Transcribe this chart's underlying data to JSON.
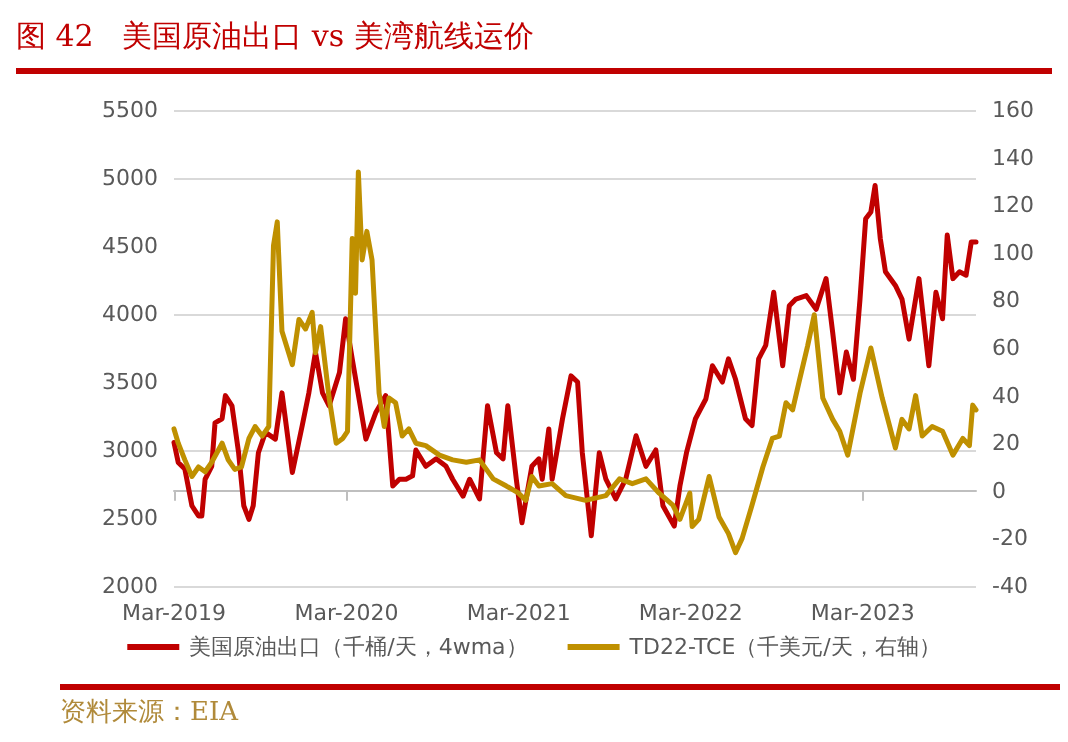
{
  "chart_data": {
    "type": "line",
    "title": "图 42   美国原油出口 vs 美湾航线运价",
    "annotations": [
      "资料来源：EIA"
    ],
    "xlim": [
      "2019-03-01",
      "2023-10-27"
    ],
    "xticks": [
      {
        "value": "2019-03-01",
        "label": "Mar-2019"
      },
      {
        "value": "2020-03-01",
        "label": "Mar-2020"
      },
      {
        "value": "2021-03-01",
        "label": "Mar-2021"
      },
      {
        "value": "2022-03-01",
        "label": "Mar-2022"
      },
      {
        "value": "2023-03-01",
        "label": "Mar-2023"
      }
    ],
    "ylim": [
      2000,
      5500
    ],
    "yticks": [
      2000,
      2500,
      3000,
      3500,
      4000,
      4500,
      5000,
      5500
    ],
    "y2lim": [
      -40,
      160
    ],
    "y2ticks": [
      -40,
      -20,
      0,
      20,
      40,
      60,
      80,
      100,
      120,
      140,
      160
    ],
    "grid": "y",
    "legend": "bottom",
    "marker": "none",
    "line_style": "solid",
    "series": [
      {
        "name": "美国原油出口（千桶/天，4wma）",
        "color": "#c00000",
        "x": [
          "2019-03-01",
          "2019-03-10",
          "2019-03-24",
          "2019-04-08",
          "2019-04-22",
          "2019-04-29",
          "2019-05-06",
          "2019-05-20",
          "2019-05-27",
          "2019-06-11",
          "2019-06-18",
          "2019-07-02",
          "2019-07-16",
          "2019-07-27",
          "2019-08-07",
          "2019-08-16",
          "2019-08-27",
          "2019-09-11",
          "2019-10-02",
          "2019-10-16",
          "2019-11-07",
          "2019-11-28",
          "2019-12-12",
          "2019-12-26",
          "2020-01-10",
          "2020-01-24",
          "2020-02-15",
          "2020-02-28",
          "2020-03-13",
          "2020-04-11",
          "2020-05-02",
          "2020-05-23",
          "2020-06-07",
          "2020-06-21",
          "2020-07-05",
          "2020-07-19",
          "2020-07-26",
          "2020-08-16",
          "2020-09-07",
          "2020-09-28",
          "2020-10-12",
          "2020-11-03",
          "2020-11-17",
          "2020-12-08",
          "2020-12-25",
          "2021-01-13",
          "2021-01-27",
          "2021-02-06",
          "2021-02-24",
          "2021-03-08",
          "2021-03-29",
          "2021-04-13",
          "2021-04-20",
          "2021-05-04",
          "2021-05-11",
          "2021-06-02",
          "2021-06-20",
          "2021-07-04",
          "2021-07-14",
          "2021-08-02",
          "2021-08-19",
          "2021-09-02",
          "2021-09-23",
          "2021-10-14",
          "2021-11-05",
          "2021-11-26",
          "2021-12-17",
          "2022-01-01",
          "2022-01-25",
          "2022-02-06",
          "2022-02-20",
          "2022-03-11",
          "2022-04-02",
          "2022-04-16",
          "2022-05-07",
          "2022-05-20",
          "2022-06-04",
          "2022-06-25",
          "2022-07-09",
          "2022-07-23",
          "2022-08-07",
          "2022-08-24",
          "2022-09-12",
          "2022-09-26",
          "2022-10-10",
          "2022-11-01",
          "2022-11-22",
          "2022-12-13",
          "2022-12-27",
          "2023-01-11",
          "2023-01-25",
          "2023-02-09",
          "2023-02-23",
          "2023-03-07",
          "2023-03-18",
          "2023-03-27",
          "2023-04-07",
          "2023-04-18",
          "2023-05-09",
          "2023-05-23",
          "2023-06-07",
          "2023-06-28",
          "2023-07-19",
          "2023-08-03",
          "2023-08-17",
          "2023-08-27",
          "2023-09-08",
          "2023-09-22",
          "2023-10-06",
          "2023-10-17",
          "2023-10-27"
        ],
        "values": [
          3055,
          2908,
          2860,
          2590,
          2515,
          2515,
          2785,
          2880,
          3200,
          3230,
          3400,
          3325,
          2980,
          2590,
          2490,
          2590,
          2980,
          3130,
          3080,
          3420,
          2835,
          3180,
          3420,
          3720,
          3420,
          3325,
          3570,
          3965,
          3670,
          3080,
          3275,
          3400,
          2735,
          2785,
          2785,
          2810,
          3000,
          2880,
          2935,
          2880,
          2785,
          2660,
          2785,
          2640,
          3325,
          2980,
          2935,
          3325,
          2785,
          2465,
          2880,
          2935,
          2785,
          3155,
          2785,
          3230,
          3545,
          3500,
          2980,
          2370,
          2980,
          2785,
          2640,
          2785,
          3105,
          2880,
          3000,
          2590,
          2440,
          2735,
          2980,
          3230,
          3375,
          3620,
          3500,
          3670,
          3520,
          3230,
          3180,
          3670,
          3770,
          4160,
          3620,
          4060,
          4110,
          4135,
          4035,
          4260,
          3865,
          3420,
          3720,
          3520,
          4110,
          4700,
          4750,
          4945,
          4555,
          4310,
          4210,
          4110,
          3815,
          4260,
          3620,
          4160,
          3965,
          4580,
          4260,
          4310,
          4285,
          4530,
          4530
        ]
      },
      {
        "name": "TD22-TCE（千美元/天，右轴）",
        "color": "#bf9000",
        "axis": "y2",
        "x": [
          "2019-03-01",
          "2019-03-10",
          "2019-03-24",
          "2019-04-08",
          "2019-04-22",
          "2019-05-06",
          "2019-05-20",
          "2019-06-11",
          "2019-06-24",
          "2019-07-08",
          "2019-07-22",
          "2019-08-07",
          "2019-08-20",
          "2019-09-04",
          "2019-09-18",
          "2019-09-28",
          "2019-10-06",
          "2019-10-16",
          "2019-11-07",
          "2019-11-21",
          "2019-12-05",
          "2019-12-19",
          "2019-12-26",
          "2020-01-06",
          "2020-01-24",
          "2020-02-08",
          "2020-02-22",
          "2020-03-03",
          "2020-03-13",
          "2020-03-20",
          "2020-03-26",
          "2020-04-03",
          "2020-04-13",
          "2020-04-24",
          "2020-05-09",
          "2020-05-20",
          "2020-05-30",
          "2020-06-13",
          "2020-06-27",
          "2020-07-11",
          "2020-07-26",
          "2020-08-16",
          "2020-09-14",
          "2020-10-12",
          "2020-11-10",
          "2020-12-08",
          "2021-01-06",
          "2021-02-03",
          "2021-03-01",
          "2021-03-16",
          "2021-03-29",
          "2021-04-13",
          "2021-05-11",
          "2021-06-09",
          "2021-07-21",
          "2021-09-02",
          "2021-10-01",
          "2021-10-28",
          "2021-11-26",
          "2021-12-24",
          "2022-01-22",
          "2022-02-06",
          "2022-02-27",
          "2022-03-04",
          "2022-03-18",
          "2022-04-09",
          "2022-04-30",
          "2022-05-20",
          "2022-06-04",
          "2022-06-18",
          "2022-07-09",
          "2022-08-01",
          "2022-08-21",
          "2022-09-05",
          "2022-09-19",
          "2022-10-03",
          "2022-10-17",
          "2022-11-04",
          "2022-11-18",
          "2022-12-06",
          "2022-12-27",
          "2023-01-11",
          "2023-01-28",
          "2023-02-23",
          "2023-03-18",
          "2023-04-11",
          "2023-05-09",
          "2023-05-23",
          "2023-06-07",
          "2023-06-21",
          "2023-07-05",
          "2023-07-26",
          "2023-08-17",
          "2023-09-08",
          "2023-09-29",
          "2023-10-13",
          "2023-10-20",
          "2023-10-27"
        ],
        "values": [
          26,
          20,
          13,
          6,
          10,
          8,
          12,
          20,
          13,
          9,
          10,
          22,
          27,
          23,
          27,
          103,
          113,
          67,
          53,
          72,
          68,
          75,
          58,
          69,
          39,
          20,
          22,
          25,
          106,
          83,
          134,
          97,
          109,
          97,
          41,
          27,
          39,
          37,
          23,
          26,
          20,
          19,
          15,
          13,
          12,
          13,
          5,
          2,
          -1,
          -4,
          6,
          2,
          3,
          -2,
          -4,
          -2,
          5,
          3,
          5,
          -1,
          -6,
          -12,
          -1,
          -15,
          -12,
          6,
          -11,
          -18,
          -26,
          -20,
          -6,
          10,
          22,
          23,
          37,
          34,
          46,
          61,
          74,
          39,
          30,
          25,
          15,
          41,
          60,
          39,
          18,
          30,
          26,
          40,
          23,
          27,
          25,
          15,
          22,
          19,
          36,
          34
        ]
      }
    ]
  }
}
